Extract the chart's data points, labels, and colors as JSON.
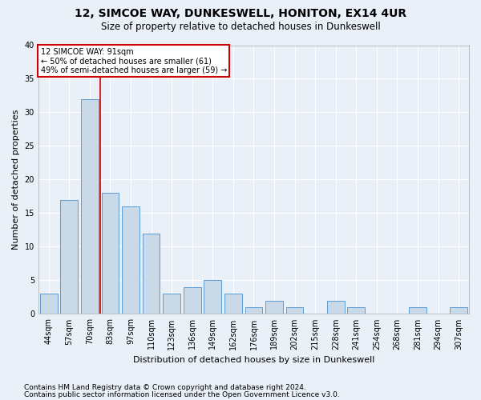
{
  "title": "12, SIMCOE WAY, DUNKESWELL, HONITON, EX14 4UR",
  "subtitle": "Size of property relative to detached houses in Dunkeswell",
  "xlabel": "Distribution of detached houses by size in Dunkeswell",
  "ylabel": "Number of detached properties",
  "categories": [
    "44sqm",
    "57sqm",
    "70sqm",
    "83sqm",
    "97sqm",
    "110sqm",
    "123sqm",
    "136sqm",
    "149sqm",
    "162sqm",
    "176sqm",
    "189sqm",
    "202sqm",
    "215sqm",
    "228sqm",
    "241sqm",
    "254sqm",
    "268sqm",
    "281sqm",
    "294sqm",
    "307sqm"
  ],
  "values": [
    3,
    17,
    32,
    18,
    16,
    12,
    3,
    4,
    5,
    3,
    1,
    2,
    1,
    0,
    2,
    1,
    0,
    0,
    1,
    0,
    1
  ],
  "bar_color": "#c9d9e8",
  "bar_edge_color": "#5b9bd5",
  "property_label": "12 SIMCOE WAY: 91sqm",
  "annotation_line1": "← 50% of detached houses are smaller (61)",
  "annotation_line2": "49% of semi-detached houses are larger (59) →",
  "annotation_box_color": "#ffffff",
  "annotation_box_edge": "#cc0000",
  "marker_line_color": "#cc0000",
  "marker_bin_index": 2,
  "ylim": [
    0,
    40
  ],
  "yticks": [
    0,
    5,
    10,
    15,
    20,
    25,
    30,
    35,
    40
  ],
  "footnote1": "Contains HM Land Registry data © Crown copyright and database right 2024.",
  "footnote2": "Contains public sector information licensed under the Open Government Licence v3.0.",
  "bg_color": "#eaf0f8",
  "plot_bg_color": "#eaf0f8",
  "grid_color": "#ffffff",
  "title_fontsize": 10,
  "subtitle_fontsize": 8.5,
  "axis_label_fontsize": 8,
  "tick_fontsize": 7,
  "footnote_fontsize": 6.5
}
